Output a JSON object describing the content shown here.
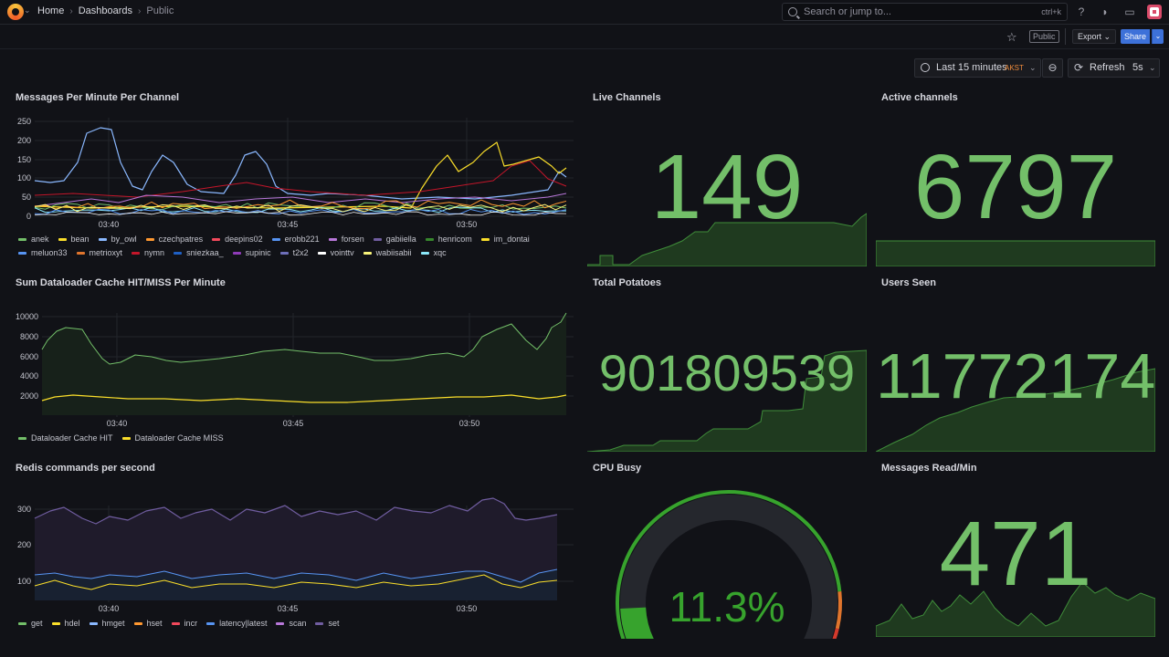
{
  "topbar": {
    "breadcrumbs": [
      "Home",
      "Dashboards",
      "Public"
    ],
    "search_placeholder": "Search or jump to...",
    "search_shortcut": "ctrl+k"
  },
  "subbar": {
    "public_tag": "Public",
    "export_label": "Export",
    "share_label": "Share"
  },
  "timepicker": {
    "range": "Last 15 minutes",
    "timezone": "AKST"
  },
  "refresh": {
    "label": "Refresh",
    "interval": "5s"
  },
  "panels": {
    "messages": {
      "title": "Messages Per Minute Per Channel",
      "yticks": [
        "250",
        "200",
        "150",
        "100",
        "50",
        "0"
      ],
      "xticks": [
        "03:40",
        "03:45",
        "03:50"
      ],
      "legend": [
        {
          "name": "anek",
          "color": "#73bf69"
        },
        {
          "name": "bean",
          "color": "#fade2a"
        },
        {
          "name": "by_owl",
          "color": "#8ab8ff"
        },
        {
          "name": "czechpatres",
          "color": "#ff9830"
        },
        {
          "name": "deepins02",
          "color": "#f2495c"
        },
        {
          "name": "erobb221",
          "color": "#5794f2"
        },
        {
          "name": "forsen",
          "color": "#b877d9"
        },
        {
          "name": "gabiiella",
          "color": "#705da0"
        },
        {
          "name": "henricom",
          "color": "#37872d"
        },
        {
          "name": "im_dontai",
          "color": "#fade2a"
        },
        {
          "name": "meluon33",
          "color": "#5794f2"
        },
        {
          "name": "metrioxyt",
          "color": "#e0752d"
        },
        {
          "name": "nymn",
          "color": "#c4162a"
        },
        {
          "name": "sniezkaa_",
          "color": "#1f60c4"
        },
        {
          "name": "supinic",
          "color": "#8f3bb8"
        },
        {
          "name": "t2x2",
          "color": "#6e6fba"
        },
        {
          "name": "vointtv",
          "color": "#ffffff"
        },
        {
          "name": "wabiisabii",
          "color": "#f8f37a"
        },
        {
          "name": "xqc",
          "color": "#8ae7f9"
        }
      ]
    },
    "dataloader": {
      "title": "Sum Dataloader Cache HIT/MISS Per Minute",
      "yticks": [
        "10000",
        "8000",
        "6000",
        "4000",
        "2000"
      ],
      "xticks": [
        "03:40",
        "03:45",
        "03:50"
      ],
      "legend": [
        {
          "name": "Dataloader Cache HIT",
          "color": "#73bf69"
        },
        {
          "name": "Dataloader Cache MISS",
          "color": "#fade2a"
        }
      ]
    },
    "redis": {
      "title": "Redis commands per second",
      "yticks": [
        "300",
        "200",
        "100"
      ],
      "xticks": [
        "03:40",
        "03:45",
        "03:50"
      ],
      "legend": [
        {
          "name": "get",
          "color": "#73bf69"
        },
        {
          "name": "hdel",
          "color": "#fade2a"
        },
        {
          "name": "hmget",
          "color": "#8ab8ff"
        },
        {
          "name": "hset",
          "color": "#ff9830"
        },
        {
          "name": "incr",
          "color": "#f2495c"
        },
        {
          "name": "latency|latest",
          "color": "#5794f2"
        },
        {
          "name": "scan",
          "color": "#b877d9"
        },
        {
          "name": "set",
          "color": "#705da0"
        }
      ]
    },
    "live_channels": {
      "title": "Live Channels",
      "value": "149"
    },
    "active_channels": {
      "title": "Active channels",
      "value": "6797"
    },
    "total_potatoes": {
      "title": "Total Potatoes",
      "value": "901809539"
    },
    "users_seen": {
      "title": "Users Seen",
      "value": "11772174"
    },
    "cpu_busy": {
      "title": "CPU Busy",
      "value": "11.3%",
      "percent": 11.3
    },
    "messages_read": {
      "title": "Messages Read/Min",
      "value": "471"
    }
  }
}
